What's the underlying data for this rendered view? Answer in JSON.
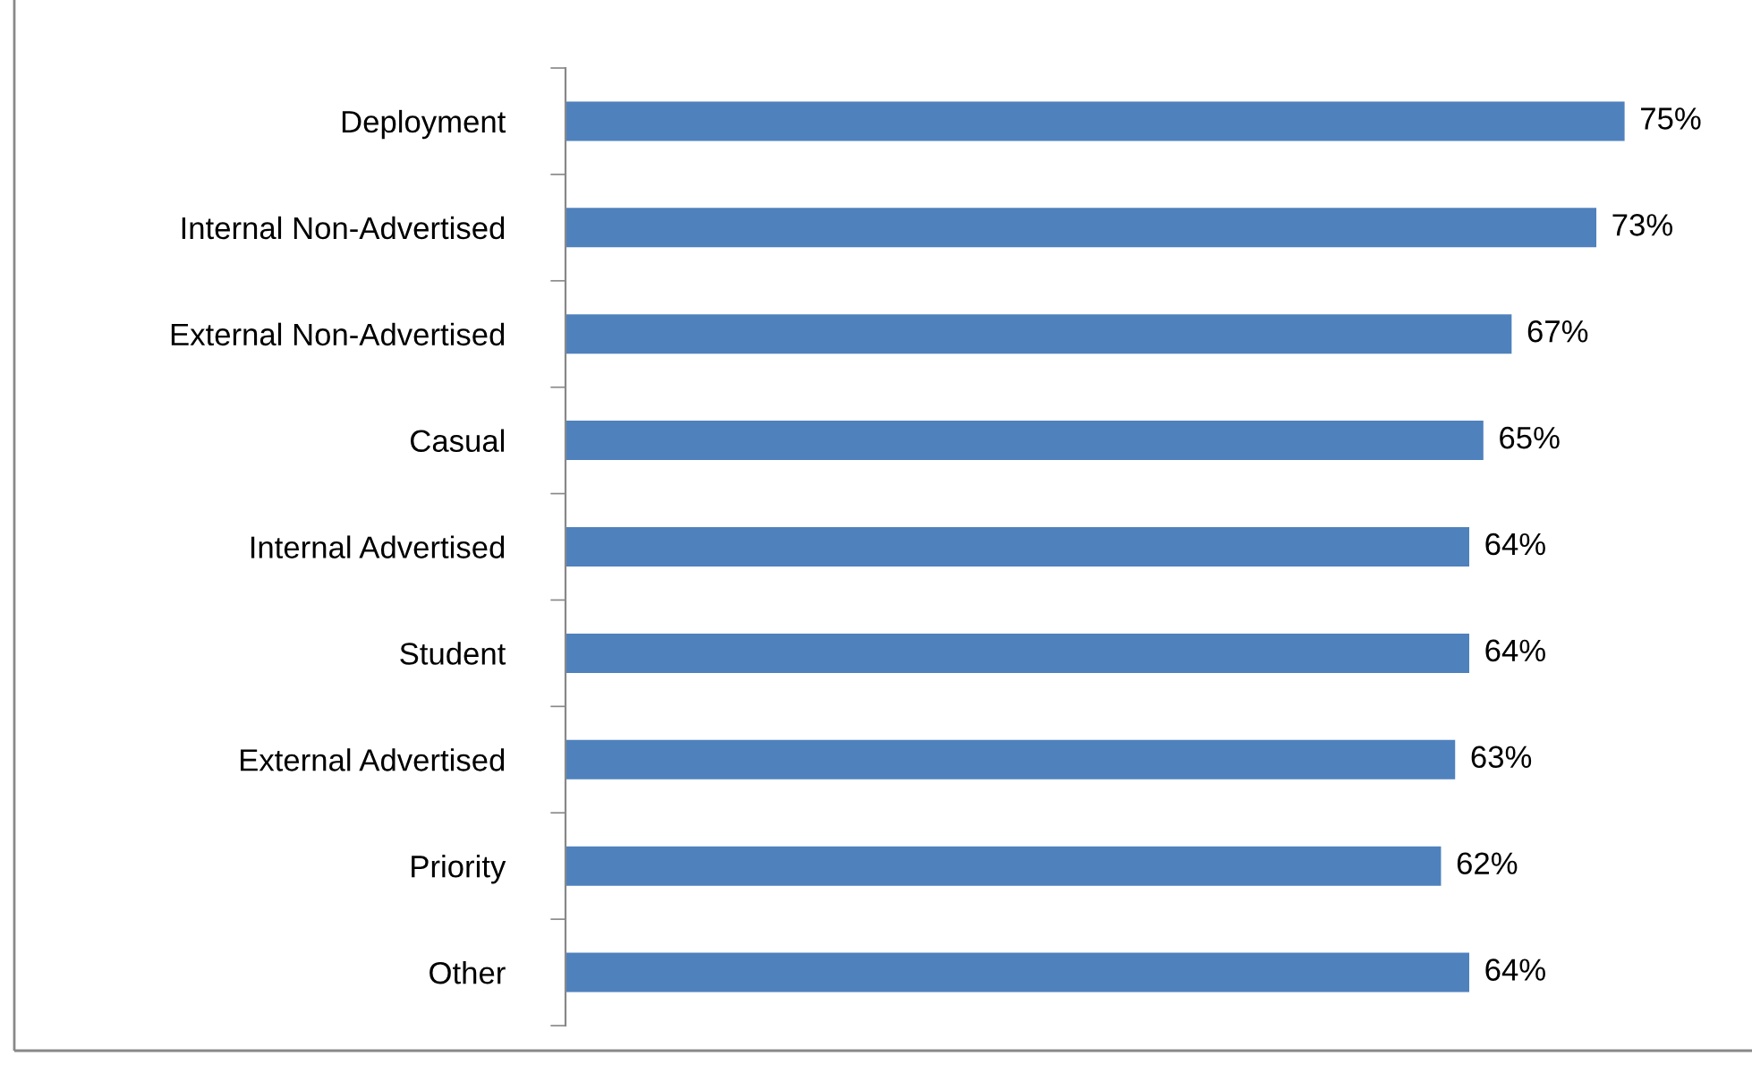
{
  "chart_data": {
    "type": "bar",
    "orientation": "horizontal",
    "categories": [
      "Deployment",
      "Internal Non-Advertised",
      "External Non-Advertised",
      "Casual",
      "Internal Advertised",
      "Student",
      "External Advertised",
      "Priority",
      "Other"
    ],
    "values": [
      75,
      73,
      67,
      65,
      64,
      64,
      63,
      62,
      64
    ],
    "value_labels": [
      "75%",
      "73%",
      "67%",
      "65%",
      "64%",
      "64%",
      "63%",
      "62%",
      "64%"
    ],
    "color": "#4f81bd",
    "grid": false,
    "legend": false,
    "tick_labels": "y"
  }
}
